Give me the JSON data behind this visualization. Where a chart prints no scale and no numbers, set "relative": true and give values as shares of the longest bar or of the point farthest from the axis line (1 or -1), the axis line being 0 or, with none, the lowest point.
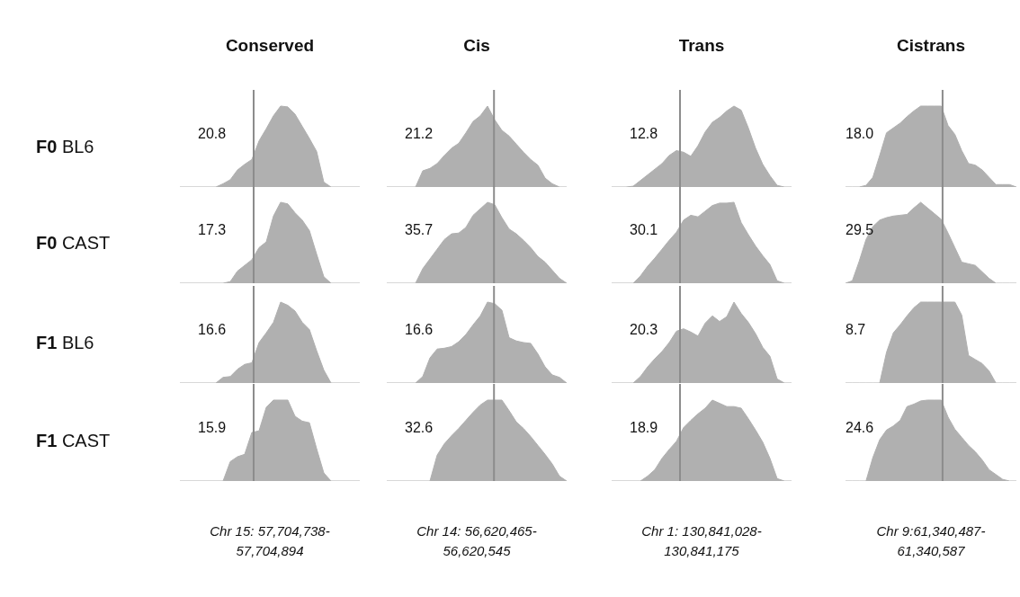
{
  "chart_data": [
    {
      "type": "area",
      "relative": true,
      "title": "Conserved",
      "ylabel": "F0 BL6",
      "annotations": [
        "20.8"
      ],
      "color": "#b0b0b0",
      "categories": [
        null,
        null,
        null,
        null,
        null,
        null,
        null,
        null,
        null,
        null,
        null,
        null,
        null,
        null,
        null,
        null,
        null,
        null,
        null,
        null,
        null,
        null,
        null,
        null,
        null,
        null
      ],
      "values": [
        0,
        0,
        0,
        0,
        0,
        0,
        0.04,
        0.09,
        0.21,
        0.28,
        0.34,
        0.57,
        0.72,
        0.88,
        1,
        0.99,
        0.9,
        0.75,
        0.6,
        0.44,
        0.06,
        0,
        0,
        0,
        0,
        0
      ]
    },
    {
      "type": "area",
      "relative": true,
      "title": "Cis",
      "annotations": [
        "21.2"
      ],
      "color": "#b0b0b0",
      "categories": [
        null,
        null,
        null,
        null,
        null,
        null,
        null,
        null,
        null,
        null,
        null,
        null,
        null,
        null,
        null,
        null,
        null,
        null,
        null,
        null,
        null,
        null,
        null,
        null,
        null,
        null
      ],
      "values": [
        0,
        0,
        0,
        0,
        0,
        0.2,
        0.23,
        0.29,
        0.39,
        0.48,
        0.54,
        0.67,
        0.81,
        0.88,
        1,
        0.83,
        0.7,
        0.63,
        0.53,
        0.43,
        0.34,
        0.27,
        0.11,
        0.04,
        0,
        0
      ]
    },
    {
      "type": "area",
      "relative": true,
      "title": "Trans",
      "annotations": [
        "12.8"
      ],
      "color": "#b0b0b0",
      "categories": [
        null,
        null,
        null,
        null,
        null,
        null,
        null,
        null,
        null,
        null,
        null,
        null,
        null,
        null,
        null,
        null,
        null,
        null,
        null,
        null,
        null,
        null,
        null,
        null,
        null,
        null
      ],
      "values": [
        0,
        0,
        0,
        0.01,
        0.08,
        0.15,
        0.22,
        0.29,
        0.39,
        0.45,
        0.43,
        0.38,
        0.51,
        0.68,
        0.8,
        0.86,
        0.94,
        1,
        0.95,
        0.73,
        0.48,
        0.28,
        0.14,
        0.02,
        0,
        0
      ]
    },
    {
      "type": "area",
      "relative": true,
      "title": "Cistrans",
      "annotations": [
        "18.0"
      ],
      "color": "#b0b0b0",
      "categories": [
        null,
        null,
        null,
        null,
        null,
        null,
        null,
        null,
        null,
        null,
        null,
        null,
        null,
        null,
        null,
        null,
        null,
        null,
        null,
        null,
        null,
        null,
        null,
        null,
        null,
        null
      ],
      "values": [
        0,
        0,
        0,
        0.02,
        0.12,
        0.39,
        0.67,
        0.73,
        0.79,
        0.87,
        0.94,
        1,
        1,
        1,
        1,
        0.76,
        0.65,
        0.45,
        0.29,
        0.27,
        0.21,
        0.12,
        0.03,
        0.03,
        0.03,
        0
      ]
    },
    {
      "type": "area",
      "relative": true,
      "ylabel": "F0 CAST",
      "annotations": [
        "17.3"
      ],
      "color": "#b0b0b0",
      "categories": [
        null,
        null,
        null,
        null,
        null,
        null,
        null,
        null,
        null,
        null,
        null,
        null,
        null,
        null,
        null,
        null,
        null,
        null,
        null,
        null,
        null,
        null,
        null,
        null,
        null,
        null
      ],
      "values": [
        0,
        0,
        0,
        0,
        0,
        0,
        0,
        0.02,
        0.15,
        0.22,
        0.29,
        0.44,
        0.51,
        0.83,
        1,
        0.98,
        0.87,
        0.78,
        0.65,
        0.36,
        0.08,
        0,
        0,
        0,
        0,
        0
      ]
    },
    {
      "type": "area",
      "relative": true,
      "annotations": [
        "35.7"
      ],
      "color": "#b0b0b0",
      "categories": [
        null,
        null,
        null,
        null,
        null,
        null,
        null,
        null,
        null,
        null,
        null,
        null,
        null,
        null,
        null,
        null,
        null,
        null,
        null,
        null,
        null,
        null,
        null,
        null,
        null,
        null
      ],
      "values": [
        0,
        0,
        0,
        0,
        0,
        0.18,
        0.3,
        0.42,
        0.54,
        0.61,
        0.62,
        0.69,
        0.84,
        0.92,
        1,
        0.97,
        0.81,
        0.67,
        0.61,
        0.53,
        0.44,
        0.33,
        0.26,
        0.16,
        0.06,
        0
      ]
    },
    {
      "type": "area",
      "relative": true,
      "annotations": [
        "30.1"
      ],
      "color": "#b0b0b0",
      "categories": [
        null,
        null,
        null,
        null,
        null,
        null,
        null,
        null,
        null,
        null,
        null,
        null,
        null,
        null,
        null,
        null,
        null,
        null,
        null,
        null,
        null,
        null,
        null,
        null,
        null,
        null
      ],
      "values": [
        0,
        0,
        0,
        0,
        0.09,
        0.21,
        0.31,
        0.42,
        0.53,
        0.63,
        0.78,
        0.84,
        0.82,
        0.89,
        0.96,
        0.99,
        0.99,
        1,
        0.75,
        0.6,
        0.46,
        0.34,
        0.23,
        0.03,
        0,
        0
      ]
    },
    {
      "type": "area",
      "relative": true,
      "annotations": [
        "29.5"
      ],
      "color": "#b0b0b0",
      "categories": [
        null,
        null,
        null,
        null,
        null,
        null,
        null,
        null,
        null,
        null,
        null,
        null,
        null,
        null,
        null,
        null,
        null,
        null,
        null,
        null,
        null,
        null,
        null,
        null,
        null,
        null
      ],
      "values": [
        0,
        0.03,
        0.27,
        0.54,
        0.7,
        0.78,
        0.81,
        0.83,
        0.84,
        0.85,
        0.93,
        1,
        0.93,
        0.86,
        0.79,
        0.62,
        0.44,
        0.26,
        0.24,
        0.22,
        0.14,
        0.06,
        0,
        0,
        0,
        0
      ]
    },
    {
      "type": "area",
      "relative": true,
      "ylabel": "F1 BL6",
      "annotations": [
        "16.6"
      ],
      "color": "#b0b0b0",
      "categories": [
        null,
        null,
        null,
        null,
        null,
        null,
        null,
        null,
        null,
        null,
        null,
        null,
        null,
        null,
        null,
        null,
        null,
        null,
        null,
        null,
        null,
        null,
        null,
        null,
        null,
        null
      ],
      "values": [
        0,
        0,
        0,
        0,
        0,
        0,
        0.07,
        0.08,
        0.17,
        0.23,
        0.25,
        0.5,
        0.62,
        0.75,
        1,
        0.96,
        0.89,
        0.75,
        0.66,
        0.4,
        0.16,
        0,
        0,
        0,
        0,
        0
      ]
    },
    {
      "type": "area",
      "relative": true,
      "annotations": [
        "16.6"
      ],
      "color": "#b0b0b0",
      "categories": [
        null,
        null,
        null,
        null,
        null,
        null,
        null,
        null,
        null,
        null,
        null,
        null,
        null,
        null,
        null,
        null,
        null,
        null,
        null,
        null,
        null,
        null,
        null,
        null,
        null,
        null
      ],
      "values": [
        0,
        0,
        0,
        0,
        0,
        0.08,
        0.31,
        0.42,
        0.43,
        0.45,
        0.51,
        0.6,
        0.72,
        0.83,
        1,
        0.98,
        0.9,
        0.56,
        0.52,
        0.5,
        0.49,
        0.36,
        0.2,
        0.1,
        0.07,
        0
      ]
    },
    {
      "type": "area",
      "relative": true,
      "annotations": [
        "20.3"
      ],
      "color": "#b0b0b0",
      "categories": [
        null,
        null,
        null,
        null,
        null,
        null,
        null,
        null,
        null,
        null,
        null,
        null,
        null,
        null,
        null,
        null,
        null,
        null,
        null,
        null,
        null,
        null,
        null,
        null,
        null,
        null
      ],
      "values": [
        0,
        0,
        0,
        0,
        0.08,
        0.2,
        0.3,
        0.39,
        0.5,
        0.64,
        0.67,
        0.63,
        0.58,
        0.74,
        0.83,
        0.76,
        0.82,
        1,
        0.86,
        0.75,
        0.61,
        0.44,
        0.33,
        0.05,
        0,
        0
      ]
    },
    {
      "type": "area",
      "relative": true,
      "annotations": [
        "8.7"
      ],
      "color": "#b0b0b0",
      "categories": [
        null,
        null,
        null,
        null,
        null,
        null,
        null,
        null,
        null,
        null,
        null,
        null,
        null,
        null,
        null,
        null,
        null,
        null,
        null,
        null,
        null,
        null,
        null,
        null,
        null,
        null
      ],
      "values": [
        0,
        0,
        0,
        0,
        0,
        0,
        0.38,
        0.62,
        0.72,
        0.83,
        0.93,
        1,
        1,
        1,
        1,
        1,
        1,
        0.84,
        0.34,
        0.29,
        0.24,
        0.15,
        0,
        0,
        0,
        0
      ]
    },
    {
      "type": "area",
      "relative": true,
      "ylabel": "F1 CAST",
      "annotations": [
        "15.9",
        "Chr 15: 57,704,738-57,704,894"
      ],
      "color": "#b0b0b0",
      "categories": [
        null,
        null,
        null,
        null,
        null,
        null,
        null,
        null,
        null,
        null,
        null,
        null,
        null,
        null,
        null,
        null,
        null,
        null,
        null,
        null,
        null,
        null,
        null,
        null,
        null,
        null
      ],
      "values": [
        0,
        0,
        0,
        0,
        0,
        0,
        0,
        0.24,
        0.3,
        0.33,
        0.6,
        0.62,
        0.91,
        1,
        1,
        1,
        0.8,
        0.74,
        0.72,
        0.4,
        0.1,
        0,
        0,
        0,
        0,
        0
      ]
    },
    {
      "type": "area",
      "relative": true,
      "annotations": [
        "32.6",
        "Chr 14: 56,620,465-56,620,545"
      ],
      "color": "#b0b0b0",
      "categories": [
        null,
        null,
        null,
        null,
        null,
        null,
        null,
        null,
        null,
        null,
        null,
        null,
        null,
        null,
        null,
        null,
        null,
        null,
        null,
        null,
        null,
        null,
        null,
        null,
        null,
        null
      ],
      "values": [
        0,
        0,
        0,
        0,
        0,
        0,
        0,
        0.32,
        0.46,
        0.56,
        0.65,
        0.75,
        0.85,
        0.94,
        1,
        1,
        1,
        0.87,
        0.73,
        0.65,
        0.55,
        0.44,
        0.33,
        0.21,
        0.06,
        0
      ]
    },
    {
      "type": "area",
      "relative": true,
      "annotations": [
        "18.9",
        "Chr 1: 130,841,028-130,841,175"
      ],
      "color": "#b0b0b0",
      "categories": [
        null,
        null,
        null,
        null,
        null,
        null,
        null,
        null,
        null,
        null,
        null,
        null,
        null,
        null,
        null,
        null,
        null,
        null,
        null,
        null,
        null,
        null,
        null,
        null,
        null,
        null
      ],
      "values": [
        0,
        0,
        0,
        0,
        0,
        0.06,
        0.14,
        0.28,
        0.39,
        0.49,
        0.66,
        0.75,
        0.83,
        0.9,
        1,
        0.96,
        0.92,
        0.92,
        0.9,
        0.77,
        0.63,
        0.48,
        0.28,
        0.03,
        0,
        0
      ]
    },
    {
      "type": "area",
      "relative": true,
      "annotations": [
        "24.6",
        "Chr 9:61,340,487-61,340,587"
      ],
      "color": "#b0b0b0",
      "categories": [
        null,
        null,
        null,
        null,
        null,
        null,
        null,
        null,
        null,
        null,
        null,
        null,
        null,
        null,
        null,
        null,
        null,
        null,
        null,
        null,
        null,
        null,
        null,
        null,
        null,
        null
      ],
      "values": [
        0,
        0,
        0,
        0,
        0.29,
        0.51,
        0.63,
        0.68,
        0.75,
        0.92,
        0.95,
        0.99,
        1,
        1,
        1,
        0.79,
        0.64,
        0.54,
        0.44,
        0.36,
        0.26,
        0.14,
        0.08,
        0.02,
        0,
        0
      ]
    }
  ]
}
